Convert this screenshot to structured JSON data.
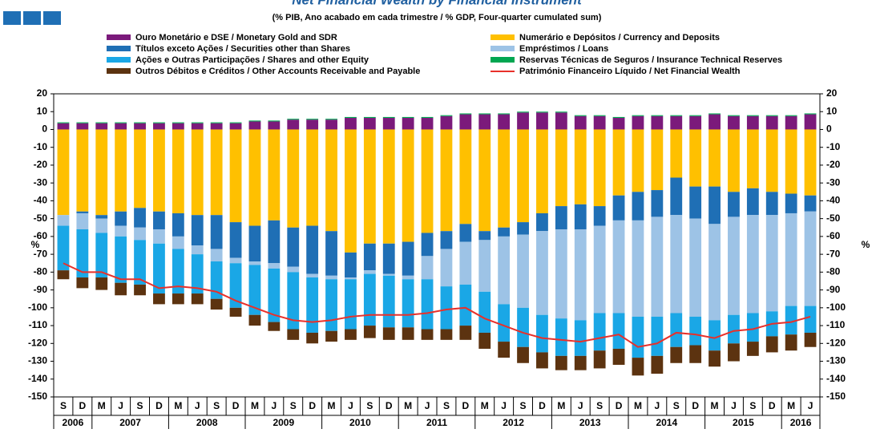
{
  "chart_data": {
    "type": "bar",
    "title": "Net Financial Wealth by Financial Instrument",
    "subtitle": "(% PIB, Ano acabado em cada trimestre / % GDP, Four-quarter cumulated sum)",
    "y_label": "%",
    "y2_label": "%",
    "stacked": true,
    "categories": [
      "S",
      "D",
      "M",
      "J",
      "S",
      "D",
      "M",
      "J",
      "S",
      "D",
      "M",
      "J",
      "S",
      "D",
      "M",
      "J",
      "S",
      "D",
      "M",
      "J",
      "S",
      "D",
      "M",
      "J",
      "S",
      "D",
      "M",
      "J",
      "S",
      "D",
      "M",
      "J",
      "S",
      "D",
      "M",
      "J",
      "S",
      "D",
      "M",
      "J"
    ],
    "years": [
      "2006",
      "2007",
      "2008",
      "2009",
      "2010",
      "2011",
      "2012",
      "2013",
      "2014",
      "2015",
      "2016"
    ],
    "ylim": [
      -150,
      20
    ],
    "yticks": [
      -150,
      -140,
      -130,
      -120,
      -110,
      -100,
      -90,
      -80,
      -70,
      -60,
      -50,
      -40,
      -30,
      -20,
      -10,
      0,
      10,
      20
    ],
    "series": [
      {
        "name": "Ouro Monetário e DSE / Monetary Gold and SDR",
        "color": "#7b1a7b",
        "values": [
          3.5,
          3.5,
          3.5,
          3.5,
          3.5,
          3.5,
          3.5,
          3.5,
          3.5,
          3.5,
          4.5,
          4.5,
          5.5,
          5.5,
          5.5,
          6.5,
          6.5,
          6.5,
          6.5,
          6.5,
          7.5,
          8.5,
          8.5,
          8.5,
          9.5,
          9.5,
          9.5,
          7.5,
          7.5,
          6.5,
          7.5,
          7.5,
          7.5,
          7.5,
          8.5,
          7.5,
          7.5,
          7.5,
          7.5,
          8.5
        ]
      },
      {
        "name": "Numerário e Depósitos / Currency and Deposits",
        "color": "#ffc000",
        "values": [
          -48,
          -46,
          -48,
          -46,
          -44,
          -46,
          -47,
          -48,
          -48,
          -52,
          -54,
          -51,
          -55,
          -54,
          -57,
          -69,
          -64,
          -64,
          -63,
          -58,
          -57,
          -53,
          -57,
          -55,
          -52,
          -47,
          -43,
          -42,
          -43,
          -37,
          -35,
          -34,
          -27,
          -32,
          -32,
          -35,
          -33,
          -35,
          -36,
          -37
        ]
      },
      {
        "name": "Títulos exceto Ações / Securities other than Shares",
        "color": "#1f6fb5",
        "values": [
          0,
          -1,
          -2,
          -8,
          -11,
          -10,
          -13,
          -17,
          -19,
          -20,
          -20,
          -24,
          -22,
          -27,
          -25,
          -14,
          -15,
          -17,
          -19,
          -13,
          -10,
          -10,
          -5,
          -5,
          -7,
          -10,
          -13,
          -14,
          -11,
          -14,
          -16,
          -15,
          -21,
          -18,
          -21,
          -14,
          -15,
          -13,
          -11,
          -9
        ]
      },
      {
        "name": "Empréstimos / Loans",
        "color": "#9dc3e6",
        "values": [
          -6,
          -9,
          -8,
          -6,
          -7,
          -8,
          -7,
          -5,
          -7,
          -3,
          -2,
          -3,
          -3,
          -2,
          -2,
          -1,
          -2,
          -1,
          -2,
          -13,
          -21,
          -24,
          -29,
          -38,
          -41,
          -47,
          -50,
          -51,
          -49,
          -52,
          -54,
          -56,
          -55,
          -55,
          -54,
          -55,
          -55,
          -54,
          -52,
          -53
        ]
      },
      {
        "name": "Ações e Outras Participações / Shares and other Equity",
        "color": "#1aa7e6",
        "values": [
          -25,
          -27,
          -25,
          -26,
          -25,
          -28,
          -25,
          -22,
          -21,
          -25,
          -28,
          -30,
          -32,
          -31,
          -29,
          -28,
          -29,
          -29,
          -27,
          -28,
          -24,
          -23,
          -23,
          -21,
          -22,
          -21,
          -21,
          -20,
          -21,
          -20,
          -23,
          -22,
          -19,
          -16,
          -17,
          -16,
          -16,
          -14,
          -16,
          -15
        ]
      },
      {
        "name": "Reservas Técnicas de Seguros / Insurance Technical Reserves",
        "color": "#00a651",
        "values": [
          0.5,
          0.5,
          0.5,
          0.5,
          0.5,
          0.5,
          0.5,
          0.5,
          0.5,
          0.5,
          0.5,
          0.5,
          0.5,
          0.5,
          0.5,
          0.5,
          0.5,
          0.5,
          0.5,
          0.5,
          0.5,
          0.5,
          0.5,
          0.5,
          0.5,
          0.5,
          0.5,
          0.5,
          0.5,
          0.5,
          0.5,
          0.5,
          0.5,
          0.5,
          0.5,
          0.5,
          0.5,
          0.5,
          0.5,
          0.5
        ]
      },
      {
        "name": "Outros Débitos e Créditos / Other Accounts Receivable and Payable",
        "color": "#5c3310",
        "values": [
          -5,
          -6,
          -7,
          -7,
          -6,
          -6,
          -6,
          -6,
          -6,
          -5,
          -6,
          -5,
          -6,
          -6,
          -6,
          -6,
          -7,
          -7,
          -7,
          -6,
          -6,
          -8,
          -9,
          -9,
          -9,
          -9,
          -8,
          -8,
          -10,
          -9,
          -10,
          -10,
          -9,
          -10,
          -9,
          -10,
          -8,
          -9,
          -9,
          -8
        ]
      },
      {
        "name": "Património Financeiro Líquido / Net Financial Wealth",
        "type": "line",
        "color": "#e8302a",
        "values": [
          -75,
          -80,
          -80,
          -84,
          -84,
          -89,
          -88,
          -89,
          -91,
          -96,
          -100,
          -104,
          -107,
          -108,
          -107,
          -105,
          -104,
          -104,
          -104,
          -103,
          -101,
          -100,
          -106,
          -110,
          -114,
          -117,
          -118,
          -119,
          -117,
          -115,
          -122,
          -120,
          -114,
          -115,
          -117,
          -113,
          -112,
          -109,
          -108,
          -105
        ]
      }
    ]
  }
}
